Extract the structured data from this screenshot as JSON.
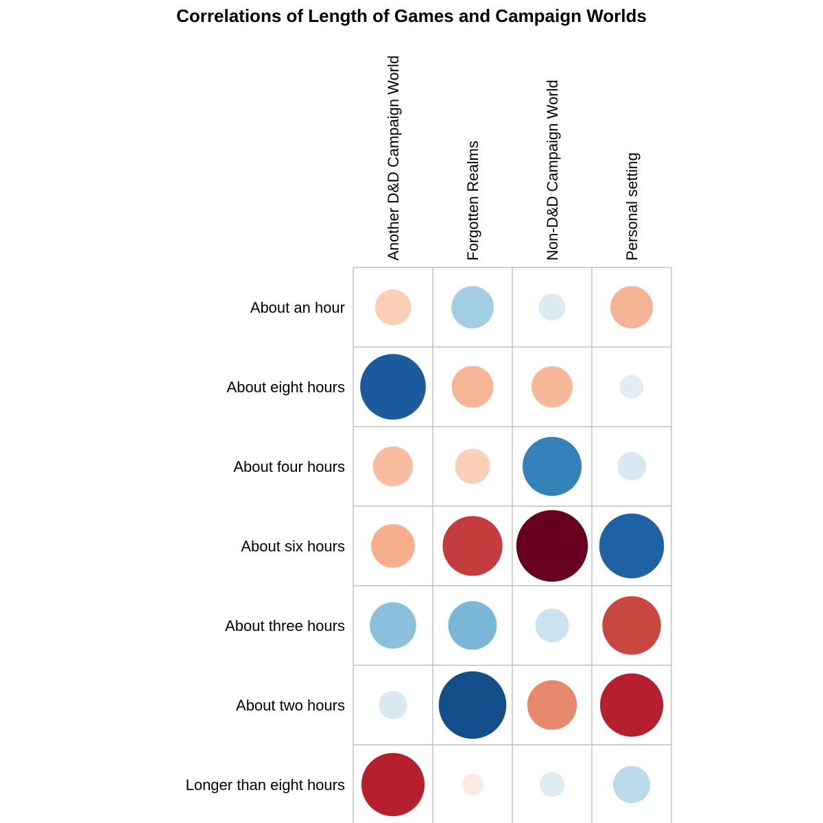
{
  "chart_data": {
    "type": "heatmap",
    "style": "circle-correlation-matrix",
    "title": "Correlations of Length of Games and Campaign Worlds",
    "columns": [
      "Another D&D Campaign World",
      "Forgotten Realms",
      "Non-D&D Campaign World",
      "Personal setting"
    ],
    "rows": [
      "About an hour",
      "About eight hours",
      "About four hours",
      "About six hours",
      "About three hours",
      "About two hours",
      "Longer than eight hours"
    ],
    "values": [
      [
        -0.25,
        0.35,
        0.14,
        -0.35
      ],
      [
        0.84,
        -0.34,
        -0.33,
        0.11
      ],
      [
        -0.31,
        -0.24,
        0.68,
        0.16
      ],
      [
        -0.37,
        -0.7,
        -1.0,
        0.82
      ],
      [
        0.42,
        0.46,
        0.22,
        -0.67
      ],
      [
        0.16,
        0.89,
        -0.48,
        -0.78
      ],
      [
        -0.78,
        -0.09,
        0.12,
        0.27
      ]
    ],
    "value_range": [
      -1,
      1
    ],
    "color_scale": {
      "negative": "#67001f",
      "zero": "#f7f7f7",
      "positive": "#053061"
    },
    "grid": true
  }
}
